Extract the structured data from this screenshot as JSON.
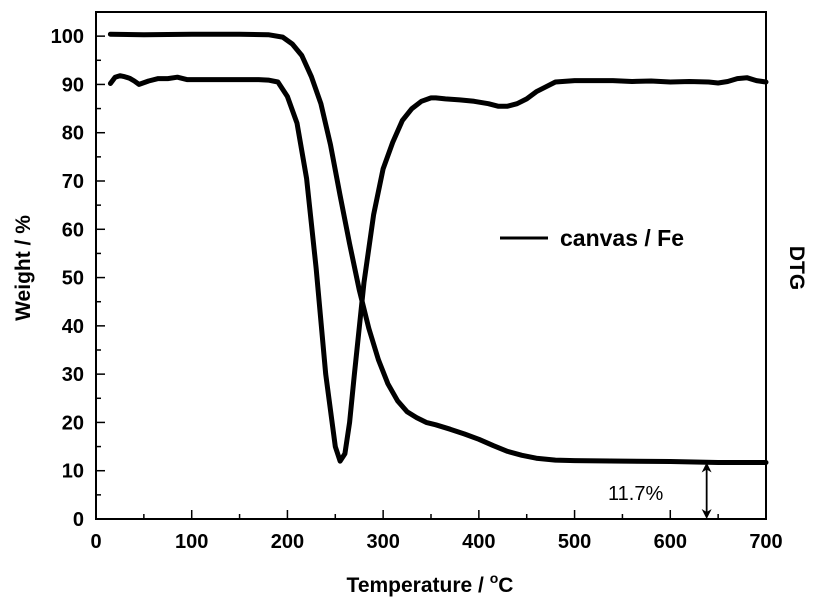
{
  "chart_data": {
    "type": "line",
    "xlabel": "Temperature / ",
    "xlabel_unit_super": "o",
    "xlabel_unit": "C",
    "ylabel": "Weight / %",
    "ylabel_right": "DTG",
    "xlim": [
      0,
      700
    ],
    "ylim": [
      0,
      105
    ],
    "x_ticks": [
      0,
      100,
      200,
      300,
      400,
      500,
      600,
      700
    ],
    "y_ticks": [
      0,
      10,
      20,
      30,
      40,
      50,
      60,
      70,
      80,
      90,
      100
    ],
    "grid": false,
    "legend": {
      "placement": "center-right",
      "label": "canvas / Fe"
    },
    "annotation": {
      "text": "11.7%",
      "x": 638,
      "y_low": 0,
      "y_high": 11.7
    },
    "series": [
      {
        "name": "canvas / Fe",
        "role": "TG",
        "x": [
          15,
          50,
          100,
          150,
          180,
          195,
          205,
          215,
          225,
          235,
          245,
          255,
          265,
          275,
          285,
          295,
          305,
          315,
          325,
          335,
          345,
          355,
          370,
          385,
          400,
          415,
          430,
          445,
          460,
          480,
          500,
          550,
          600,
          650,
          700
        ],
        "y": [
          100.4,
          100.3,
          100.4,
          100.4,
          100.3,
          99.8,
          98.4,
          96.0,
          91.6,
          86.0,
          77.5,
          67.0,
          57.0,
          47.5,
          39.5,
          33.0,
          28.0,
          24.5,
          22.2,
          21.0,
          20.0,
          19.5,
          18.6,
          17.6,
          16.5,
          15.2,
          14.0,
          13.2,
          12.6,
          12.2,
          12.1,
          12.0,
          11.9,
          11.7,
          11.7
        ]
      },
      {
        "role": "DTG",
        "x": [
          15,
          20,
          25,
          30,
          35,
          40,
          45,
          55,
          65,
          75,
          85,
          95,
          110,
          130,
          150,
          170,
          180,
          190,
          200,
          210,
          220,
          230,
          240,
          250,
          255,
          260,
          265,
          270,
          280,
          290,
          300,
          310,
          320,
          330,
          340,
          350,
          355,
          365,
          380,
          395,
          410,
          420,
          430,
          440,
          450,
          460,
          470,
          480,
          500,
          520,
          540,
          560,
          580,
          600,
          620,
          640,
          650,
          660,
          670,
          680,
          690,
          700
        ],
        "y": [
          90.2,
          91.5,
          91.8,
          91.6,
          91.3,
          90.7,
          90.0,
          90.7,
          91.2,
          91.2,
          91.5,
          91.0,
          91.0,
          91.0,
          91.0,
          91.0,
          90.9,
          90.5,
          87.5,
          82.0,
          70.5,
          52.0,
          30.0,
          15.0,
          12.0,
          13.5,
          20.0,
          30.0,
          49.0,
          63.0,
          72.5,
          78.0,
          82.5,
          85.0,
          86.5,
          87.2,
          87.2,
          87.0,
          86.8,
          86.5,
          86.0,
          85.5,
          85.5,
          86.0,
          87.0,
          88.5,
          89.5,
          90.5,
          90.8,
          90.8,
          90.8,
          90.6,
          90.7,
          90.5,
          90.6,
          90.5,
          90.3,
          90.6,
          91.2,
          91.4,
          90.8,
          90.5
        ]
      }
    ]
  }
}
